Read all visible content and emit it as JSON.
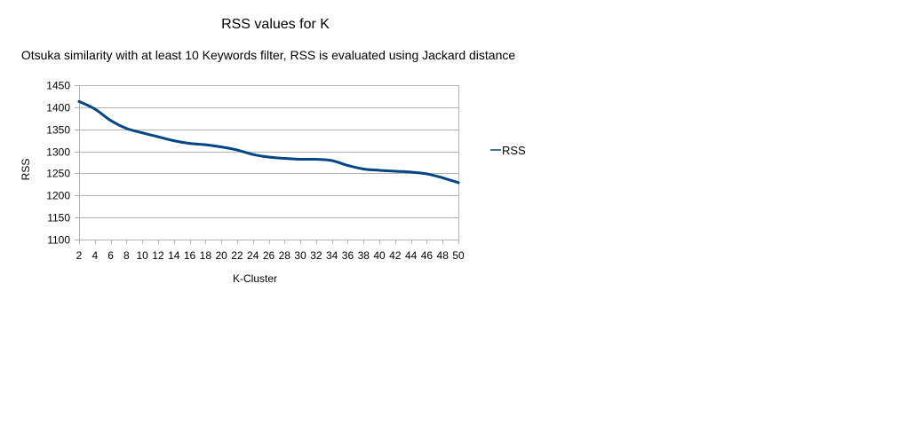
{
  "chart_data": {
    "type": "line",
    "title": "RSS values for K",
    "subtitle": "Otsuka similarity with at least 10 Keywords filter, RSS is evaluated using Jackard distance",
    "xlabel": "K-Cluster",
    "ylabel": "RSS",
    "ylim": [
      1100,
      1450
    ],
    "yticks": [
      1100,
      1150,
      1200,
      1250,
      1300,
      1350,
      1400,
      1450
    ],
    "xlim": [
      2,
      50
    ],
    "xticks": [
      2,
      4,
      6,
      8,
      10,
      12,
      14,
      16,
      18,
      20,
      22,
      24,
      26,
      28,
      30,
      32,
      34,
      36,
      38,
      40,
      42,
      44,
      46,
      48,
      50
    ],
    "grid": true,
    "legend_position": "right",
    "series": [
      {
        "name": "RSS",
        "color": "#004586",
        "x": [
          2,
          4,
          6,
          8,
          10,
          12,
          14,
          16,
          18,
          20,
          22,
          24,
          26,
          28,
          30,
          32,
          34,
          36,
          38,
          40,
          42,
          44,
          46,
          48,
          50
        ],
        "values": [
          1413,
          1396,
          1370,
          1352,
          1342,
          1333,
          1324,
          1318,
          1315,
          1310,
          1303,
          1293,
          1287,
          1284,
          1282,
          1282,
          1279,
          1268,
          1260,
          1257,
          1255,
          1253,
          1249,
          1240,
          1229
        ]
      }
    ]
  }
}
